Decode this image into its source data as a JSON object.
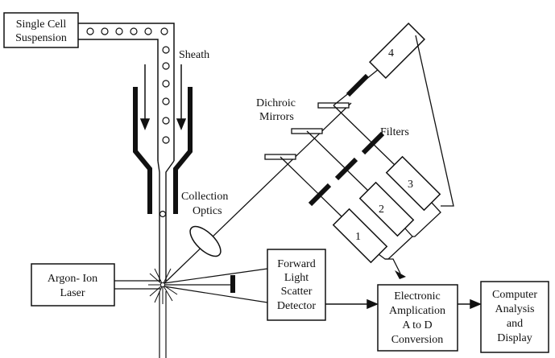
{
  "labels": {
    "suspension_line1": "Single Cell",
    "suspension_line2": "Suspension",
    "sheath": "Sheath",
    "dichroic_line1": "Dichroic",
    "dichroic_line2": "Mirrors",
    "filters": "Filters",
    "collection_line1": "Collection",
    "collection_line2": "Optics",
    "laser_line1": "Argon- Ion",
    "laser_line2": "Laser",
    "fwd_line1": "Forward",
    "fwd_line2": "Light",
    "fwd_line3": "Scatter",
    "fwd_line4": "Detector",
    "elec_line1": "Electronic",
    "elec_line2": "Amplication",
    "elec_line3": "A to D",
    "elec_line4": "Conversion",
    "comp_line1": "Computer",
    "comp_line2": "Analysis",
    "comp_line3": "and",
    "comp_line4": "Display"
  },
  "detectors": [
    "1",
    "2",
    "3",
    "4"
  ]
}
